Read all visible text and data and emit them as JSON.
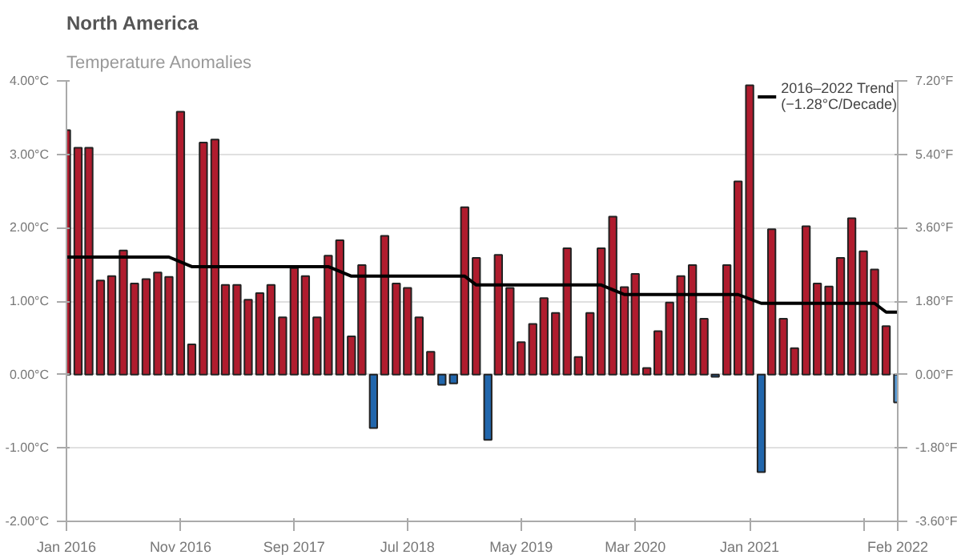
{
  "chart_data": {
    "type": "bar",
    "title": "North America",
    "subtitle": "Temperature Anomalies",
    "x": [
      "2016-01",
      "2016-02",
      "2016-03",
      "2016-04",
      "2016-05",
      "2016-06",
      "2016-07",
      "2016-08",
      "2016-09",
      "2016-10",
      "2016-11",
      "2016-12",
      "2017-01",
      "2017-02",
      "2017-03",
      "2017-04",
      "2017-05",
      "2017-06",
      "2017-07",
      "2017-08",
      "2017-09",
      "2017-10",
      "2017-11",
      "2017-12",
      "2018-01",
      "2018-02",
      "2018-03",
      "2018-04",
      "2018-05",
      "2018-06",
      "2018-07",
      "2018-08",
      "2018-09",
      "2018-10",
      "2018-11",
      "2018-12",
      "2019-01",
      "2019-02",
      "2019-03",
      "2019-04",
      "2019-05",
      "2019-06",
      "2019-07",
      "2019-08",
      "2019-09",
      "2019-10",
      "2019-11",
      "2019-12",
      "2020-01",
      "2020-02",
      "2020-03",
      "2020-04",
      "2020-05",
      "2020-06",
      "2020-07",
      "2020-08",
      "2020-09",
      "2020-10",
      "2020-11",
      "2020-12",
      "2021-01",
      "2021-02",
      "2021-03",
      "2021-04",
      "2021-05",
      "2021-06",
      "2021-07",
      "2021-08",
      "2021-09",
      "2021-10",
      "2021-11",
      "2021-12",
      "2022-01",
      "2022-02"
    ],
    "series": [
      {
        "values": [
          3.33,
          3.09,
          3.09,
          1.28,
          1.34,
          1.69,
          1.24,
          1.3,
          1.39,
          1.33,
          3.58,
          0.41,
          3.16,
          3.2,
          1.22,
          1.22,
          1.02,
          1.11,
          1.22,
          0.78,
          1.45,
          1.34,
          0.78,
          1.62,
          1.83,
          0.52,
          1.49,
          -0.73,
          1.89,
          1.24,
          1.18,
          0.78,
          0.31,
          -0.14,
          -0.12,
          2.28,
          1.59,
          -0.89,
          1.63,
          1.18,
          0.44,
          0.69,
          1.04,
          0.84,
          1.72,
          0.24,
          0.84,
          1.72,
          2.15,
          1.19,
          1.37,
          0.09,
          0.59,
          0.98,
          1.34,
          1.49,
          0.76,
          -0.03,
          1.49,
          2.63,
          3.94,
          -1.33,
          1.98,
          0.76,
          0.36,
          2.02,
          1.24,
          1.2,
          1.59,
          2.13,
          1.68,
          1.43,
          0.66,
          -0.38
        ],
        "colors": [
          "#b01c2e",
          "#b01c2e",
          "#b01c2e",
          "#b01c2e",
          "#b01c2e",
          "#b01c2e",
          "#b01c2e",
          "#b01c2e",
          "#b01c2e",
          "#b01c2e",
          "#b01c2e",
          "#b01c2e",
          "#b01c2e",
          "#b01c2e",
          "#b01c2e",
          "#b01c2e",
          "#b01c2e",
          "#b01c2e",
          "#b01c2e",
          "#b01c2e",
          "#b01c2e",
          "#b01c2e",
          "#b01c2e",
          "#b01c2e",
          "#b01c2e",
          "#b01c2e",
          "#b01c2e",
          "#2166ac",
          "#b01c2e",
          "#b01c2e",
          "#b01c2e",
          "#b01c2e",
          "#b01c2e",
          "#2166ac",
          "#2166ac",
          "#b01c2e",
          "#b01c2e",
          "#2166ac",
          "#b01c2e",
          "#b01c2e",
          "#b01c2e",
          "#b01c2e",
          "#b01c2e",
          "#b01c2e",
          "#b01c2e",
          "#b01c2e",
          "#b01c2e",
          "#b01c2e",
          "#b01c2e",
          "#b01c2e",
          "#b01c2e",
          "#b01c2e",
          "#b01c2e",
          "#b01c2e",
          "#b01c2e",
          "#b01c2e",
          "#b01c2e",
          "#2166ac",
          "#b01c2e",
          "#b01c2e",
          "#b01c2e",
          "#2166ac",
          "#b01c2e",
          "#b01c2e",
          "#b01c2e",
          "#b01c2e",
          "#b01c2e",
          "#b01c2e",
          "#b01c2e",
          "#b01c2e",
          "#b01c2e",
          "#b01c2e",
          "#b01c2e",
          "#5b9bd5"
        ]
      },
      {
        "type": "line",
        "name": "2016–2022 Trend\n(−1.28°C/Decade)",
        "color": "#000000",
        "x": [
          "2016-01",
          "2016-10",
          "2016-12",
          "2017-12",
          "2018-02",
          "2018-12",
          "2019-01",
          "2019-12",
          "2020-02",
          "2020-12",
          "2021-02",
          "2021-12",
          "2022-01",
          "2022-02"
        ],
        "values": [
          1.6,
          1.6,
          1.47,
          1.47,
          1.34,
          1.34,
          1.22,
          1.22,
          1.09,
          1.09,
          0.97,
          0.97,
          0.85,
          0.85
        ]
      }
    ],
    "xlim": [
      "2016-01",
      "2022-02"
    ],
    "xticks": [
      {
        "value": "2016-01",
        "label": "Jan 2016"
      },
      {
        "value": "2016-11",
        "label": "Nov 2016"
      },
      {
        "value": "2017-09",
        "label": "Sep 2017"
      },
      {
        "value": "2018-07",
        "label": "Jul 2018"
      },
      {
        "value": "2019-05",
        "label": "May 2019"
      },
      {
        "value": "2020-03",
        "label": "Mar 2020"
      },
      {
        "value": "2021-01",
        "label": "Jan 2021"
      },
      {
        "value": "2021-11",
        "label": null
      },
      {
        "value": "2022-02",
        "label": "Feb 2022"
      }
    ],
    "ylim": [
      -2,
      4
    ],
    "yticks": [
      {
        "value": -2,
        "label": "-2.00°C"
      },
      {
        "value": -1,
        "label": "-1.00°C"
      },
      {
        "value": 0,
        "label": "0.00°C"
      },
      {
        "value": 1,
        "label": "1.00°C"
      },
      {
        "value": 2,
        "label": "2.00°C"
      },
      {
        "value": 3,
        "label": "3.00°C"
      },
      {
        "value": 4,
        "label": "4.00°C"
      }
    ],
    "y2lim": [
      -3.6,
      7.2
    ],
    "y2ticks": [
      {
        "value": -3.6,
        "label": "-3.60°F"
      },
      {
        "value": -1.8,
        "label": "-1.80°F"
      },
      {
        "value": 0,
        "label": "0.00°F"
      },
      {
        "value": 1.8,
        "label": "1.80°F"
      },
      {
        "value": 3.6,
        "label": "3.60°F"
      },
      {
        "value": 5.4,
        "label": "5.40°F"
      },
      {
        "value": 7.2,
        "label": "7.20°F"
      }
    ],
    "grid": "y",
    "legend": "top right"
  }
}
